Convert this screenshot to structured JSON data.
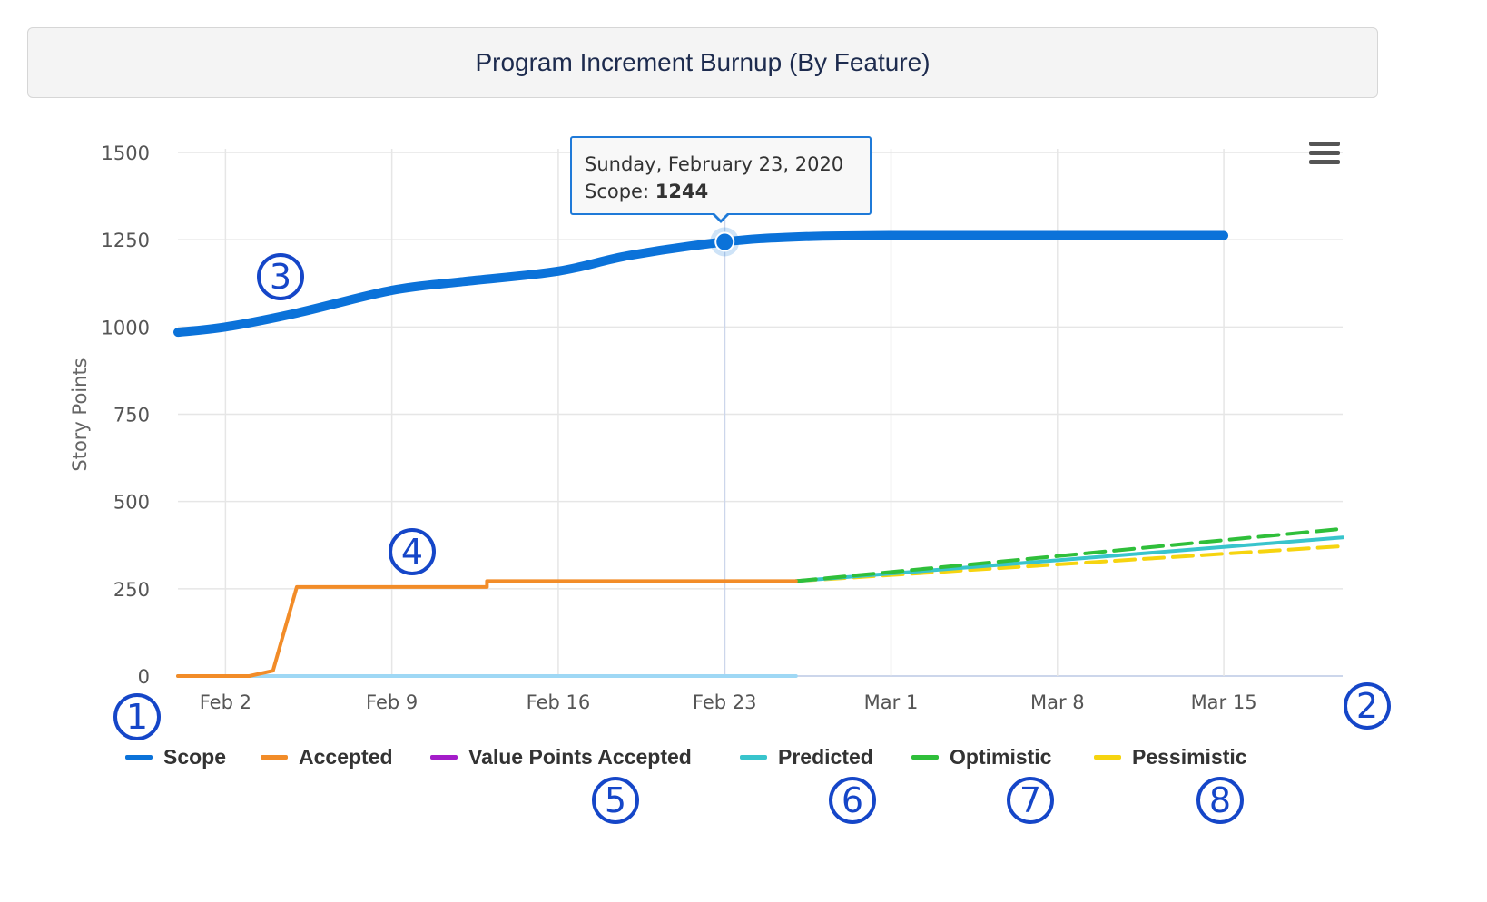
{
  "title": "Program Increment Burnup (By Feature)",
  "tooltip": {
    "date": "Sunday, February 23, 2020",
    "label": "Scope: ",
    "value": "1244"
  },
  "markers": [
    "1",
    "2",
    "3",
    "4",
    "5",
    "6",
    "7",
    "8"
  ],
  "chart_data": {
    "type": "line",
    "ylabel": "Story Points",
    "xlabel": "",
    "ylim": [
      0,
      1500
    ],
    "yticks": [
      "0",
      "250",
      "500",
      "750",
      "1000",
      "1250",
      "1500"
    ],
    "xticks": [
      "Feb 2",
      "Feb 9",
      "Feb 16",
      "Feb 23",
      "Mar 1",
      "Mar 8",
      "Mar 15"
    ],
    "xrange": [
      "2020-01-31",
      "2020-03-20"
    ],
    "grid": true,
    "legend": "bottom",
    "series": [
      {
        "name": "Scope",
        "color": "#0b72d9",
        "style": "solid",
        "x": [
          "2020-01-31",
          "2020-02-02",
          "2020-02-05",
          "2020-02-09",
          "2020-02-12",
          "2020-02-16",
          "2020-02-19",
          "2020-02-23",
          "2020-02-26",
          "2020-03-01",
          "2020-03-08",
          "2020-03-15"
        ],
        "y": [
          985,
          1000,
          1040,
          1105,
          1130,
          1160,
          1205,
          1244,
          1258,
          1262,
          1262,
          1262
        ]
      },
      {
        "name": "Accepted",
        "color": "#f28c28",
        "style": "solid",
        "x": [
          "2020-01-31",
          "2020-02-03",
          "2020-02-04",
          "2020-02-05",
          "2020-02-09",
          "2020-02-13",
          "2020-02-13",
          "2020-02-19",
          "2020-02-26"
        ],
        "y": [
          0,
          0,
          15,
          255,
          255,
          255,
          272,
          272,
          272
        ]
      },
      {
        "name": "Value Points Accepted",
        "color": "#a41cc9",
        "style": "solid",
        "x": [
          "2020-01-31",
          "2020-02-26"
        ],
        "y": [
          0,
          0
        ]
      },
      {
        "name": "Predicted",
        "color": "#38c4cc",
        "style": "solid",
        "x": [
          "2020-02-26",
          "2020-03-20"
        ],
        "y": [
          272,
          397
        ]
      },
      {
        "name": "Optimistic",
        "color": "#2fbf3a",
        "style": "dashed",
        "x": [
          "2020-02-26",
          "2020-03-20"
        ],
        "y": [
          272,
          422
        ]
      },
      {
        "name": "Pessimistic",
        "color": "#f6d40f",
        "style": "dashed",
        "x": [
          "2020-02-26",
          "2020-03-20"
        ],
        "y": [
          272,
          372
        ]
      }
    ],
    "highlight": {
      "series": "Scope",
      "x": "2020-02-23",
      "y": 1244
    }
  }
}
